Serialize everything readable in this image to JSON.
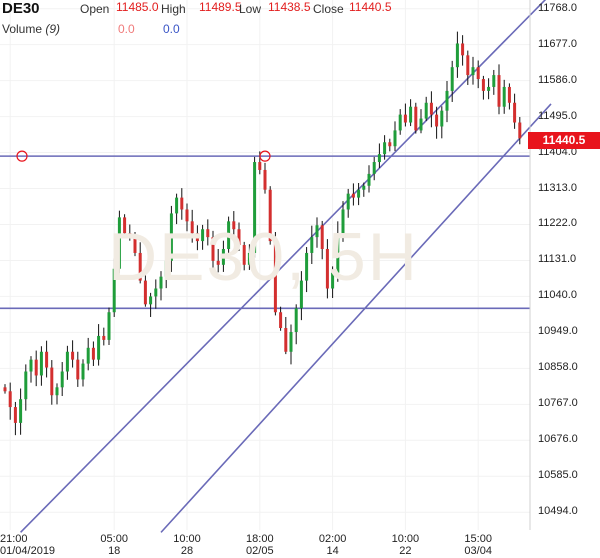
{
  "header": {
    "symbol": "DE30",
    "open_label": "Open",
    "open_value": "11485.0",
    "high_label": "High",
    "high_value": "11489.5",
    "low_label": "Low",
    "low_value": "11438.5",
    "close_label": "Close",
    "close_value": "11440.5",
    "volume_label": "Volume",
    "volume_param": "(9)",
    "volume_value_1": "0.0",
    "volume_value_2": "0.0"
  },
  "watermark": "DE30, 5H",
  "current_price": "11440.5",
  "colors": {
    "up": "#1f9d3a",
    "down": "#d32f2f",
    "wick": "#111111",
    "trendline": "#6a6ab8",
    "price_box": "#e8141c"
  },
  "chart_data": {
    "type": "candlestick",
    "symbol": "DE30",
    "timeframe": "5H",
    "ylim": [
      10449,
      11790
    ],
    "y_ticks": [
      11768.0,
      11677.0,
      11586.0,
      11495.0,
      11404.0,
      11313.0,
      11222.0,
      11131.0,
      11040.0,
      10949.0,
      10858.0,
      10767.0,
      10676.0,
      10585.0,
      10494.0
    ],
    "y_tick_labels": [
      "11768.0",
      "11677.0",
      "11586.0",
      "11495.0",
      "11404.0",
      "11313.0",
      "11222.0",
      "11131.0",
      "11040.0",
      "10949.0",
      "10858.0",
      "10767.0",
      "10676.0",
      "10585.0",
      "10494.0"
    ],
    "x_ticks": [
      {
        "line1": "21:00",
        "line2": "01/04/2019",
        "index": 1
      },
      {
        "line1": "05:00",
        "line2": "18",
        "index": 21
      },
      {
        "line1": "10:00",
        "line2": "28",
        "index": 35
      },
      {
        "line1": "18:00",
        "line2": "02/05",
        "index": 49
      },
      {
        "line1": "02:00",
        "line2": "14",
        "index": 63
      },
      {
        "line1": "10:00",
        "line2": "22",
        "index": 77
      },
      {
        "line1": "15:00",
        "line2": "03/04",
        "index": 91
      }
    ],
    "series_close": [
      10800,
      10760,
      10720,
      10780,
      10850,
      10880,
      10840,
      10900,
      10860,
      10790,
      10810,
      10850,
      10900,
      10880,
      10830,
      10870,
      10910,
      10880,
      10940,
      10930,
      11000,
      11110,
      11240,
      11200,
      11190,
      11150,
      11080,
      11020,
      11040,
      11060,
      11090,
      11130,
      11250,
      11290,
      11260,
      11230,
      11200,
      11180,
      11210,
      11190,
      11130,
      11120,
      11160,
      11230,
      11210,
      11170,
      11120,
      11150,
      11380,
      11360,
      11310,
      11180,
      11000,
      10960,
      10900,
      10950,
      11010,
      11080,
      11150,
      11190,
      11220,
      11160,
      11060,
      11100,
      11200,
      11260,
      11300,
      11290,
      11310,
      11320,
      11350,
      11380,
      11400,
      11430,
      11420,
      11460,
      11500,
      11480,
      11520,
      11460,
      11490,
      11530,
      11500,
      11470,
      11510,
      11560,
      11620,
      11680,
      11650,
      11600,
      11620,
      11590,
      11560,
      11570,
      11600,
      11520,
      11570,
      11530,
      11480,
      11440
    ],
    "last_close": 11440.5,
    "horizontal_lines": [
      11395,
      11010
    ],
    "channel_lines": [
      {
        "from": {
          "i": 3,
          "y": 10443
        },
        "to": {
          "i": 104,
          "y": 11792
        }
      },
      {
        "from": {
          "i": 30,
          "y": 10443
        },
        "to": {
          "i": 105,
          "y": 11527
        }
      }
    ]
  }
}
